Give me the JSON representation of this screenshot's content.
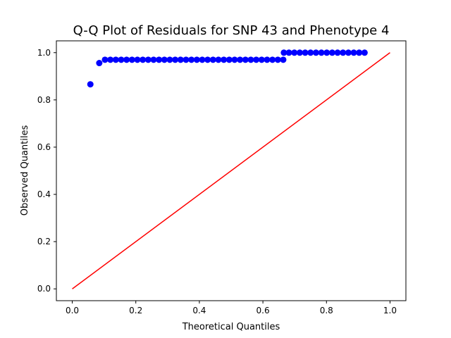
{
  "chart_data": {
    "type": "scatter",
    "title": "Q-Q Plot of Residuals for SNP 43 and Phenotype 4",
    "xlabel": "Theoretical Quantiles",
    "ylabel": "Observed Quantiles",
    "xlim": [
      -0.05,
      1.05
    ],
    "ylim": [
      -0.05,
      1.05
    ],
    "xticks": [
      0.0,
      0.2,
      0.4,
      0.6,
      0.8,
      1.0
    ],
    "yticks": [
      0.0,
      0.2,
      0.4,
      0.6,
      0.8,
      1.0
    ],
    "xtick_labels": [
      "0.0",
      "0.2",
      "0.4",
      "0.6",
      "0.8",
      "1.0"
    ],
    "ytick_labels": [
      "0.0",
      "0.2",
      "0.4",
      "0.6",
      "0.8",
      "1.0"
    ],
    "grid": false,
    "series": [
      {
        "kind": "scatter",
        "color": "#0000ff",
        "x": [
          0.057,
          0.085,
          0.103,
          0.12,
          0.137,
          0.154,
          0.171,
          0.188,
          0.205,
          0.222,
          0.239,
          0.256,
          0.273,
          0.29,
          0.307,
          0.324,
          0.341,
          0.358,
          0.375,
          0.392,
          0.409,
          0.426,
          0.443,
          0.46,
          0.477,
          0.494,
          0.511,
          0.528,
          0.545,
          0.562,
          0.579,
          0.596,
          0.613,
          0.63,
          0.647,
          0.664,
          0.666,
          0.682,
          0.699,
          0.716,
          0.733,
          0.75,
          0.767,
          0.784,
          0.801,
          0.818,
          0.835,
          0.852,
          0.869,
          0.886,
          0.903,
          0.92
        ],
        "y": [
          0.866,
          0.956,
          0.97,
          0.97,
          0.97,
          0.97,
          0.97,
          0.97,
          0.97,
          0.97,
          0.97,
          0.97,
          0.97,
          0.97,
          0.97,
          0.97,
          0.97,
          0.97,
          0.97,
          0.97,
          0.97,
          0.97,
          0.97,
          0.97,
          0.97,
          0.97,
          0.97,
          0.97,
          0.97,
          0.97,
          0.97,
          0.97,
          0.97,
          0.97,
          0.97,
          0.97,
          1.0,
          1.0,
          1.0,
          1.0,
          1.0,
          1.0,
          1.0,
          1.0,
          1.0,
          1.0,
          1.0,
          1.0,
          1.0,
          1.0,
          1.0,
          1.0
        ]
      },
      {
        "kind": "line",
        "color": "#ff0000",
        "x": [
          0.0,
          1.0
        ],
        "y": [
          0.0,
          1.0
        ]
      }
    ]
  }
}
